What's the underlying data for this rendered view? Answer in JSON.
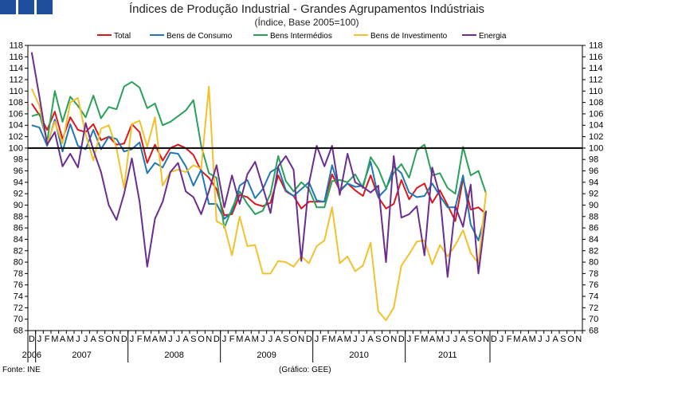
{
  "chart_data": {
    "type": "line",
    "title": "Índices de Produção Industrial - Grandes Agrupamentos Indústriais",
    "subtitle": "(Índice, Base 2005=100)",
    "source": "Fonte: INE",
    "credit": "(Gráfico: GEE)",
    "ylim": [
      68,
      118
    ],
    "ystep": 2,
    "reference_line": 100,
    "legend_position": "top",
    "month_labels": [
      "D",
      "J",
      "F",
      "M",
      "A",
      "M",
      "J",
      "J",
      "A",
      "S",
      "O",
      "N",
      "D",
      "J",
      "F",
      "M",
      "A",
      "M",
      "J",
      "J",
      "A",
      "S",
      "O",
      "N",
      "D",
      "J",
      "F",
      "M",
      "A",
      "M",
      "J",
      "J",
      "A",
      "S",
      "O",
      "N",
      "D",
      "J",
      "F",
      "M",
      "A",
      "M",
      "J",
      "J",
      "A",
      "S",
      "O",
      "N",
      "D",
      "J",
      "F",
      "M",
      "A",
      "M",
      "J",
      "J",
      "A",
      "S",
      "O",
      "N",
      "D",
      "J",
      "F",
      "M",
      "A",
      "M",
      "J",
      "J",
      "A",
      "S",
      "O",
      "N"
    ],
    "year_labels": [
      {
        "label": "2006",
        "start": 0,
        "end": 0
      },
      {
        "label": "2007",
        "start": 1,
        "end": 12
      },
      {
        "label": "2008",
        "start": 13,
        "end": 24
      },
      {
        "label": "2009",
        "start": 25,
        "end": 36
      },
      {
        "label": "2010",
        "start": 37,
        "end": 48
      },
      {
        "label": "2011",
        "start": 49,
        "end": 59
      }
    ],
    "series": [
      {
        "name": "Total",
        "color": "#d7191c",
        "values": [
          107.8,
          105.8,
          103.2,
          106.4,
          101.6,
          105.4,
          103.2,
          102.8,
          104.2,
          101.4,
          102.0,
          100.6,
          100.8,
          104.2,
          102.8,
          97.4,
          100.6,
          97.8,
          100.0,
          100.6,
          100.0,
          98.8,
          96.0,
          94.8,
          92.8,
          88.2,
          88.4,
          91.8,
          91.4,
          90.2,
          89.8,
          90.4,
          95.2,
          92.4,
          91.6,
          89.4,
          90.6,
          90.6,
          90.6,
          95.4,
          92.6,
          93.8,
          92.6,
          91.6,
          95.2,
          91.4,
          89.4,
          90.2,
          94.4,
          91.0,
          93.0,
          93.8,
          90.4,
          92.6,
          90.0,
          87.2,
          94.6,
          89.2,
          89.6,
          88.4
        ]
      },
      {
        "name": "Bens de Consumo",
        "color": "#1f77b4",
        "values": [
          104.0,
          103.6,
          100.4,
          105.0,
          99.4,
          104.2,
          100.4,
          99.8,
          103.2,
          99.8,
          102.0,
          101.6,
          99.4,
          99.8,
          101.0,
          95.6,
          97.4,
          96.6,
          99.2,
          99.0,
          96.8,
          93.4,
          96.2,
          90.2,
          90.2,
          87.6,
          88.8,
          93.4,
          94.4,
          91.2,
          92.8,
          95.8,
          96.6,
          92.6,
          91.6,
          92.8,
          94.0,
          90.8,
          90.6,
          97.0,
          92.4,
          93.8,
          93.2,
          93.4,
          97.6,
          91.4,
          92.8,
          96.8,
          95.6,
          92.2,
          91.4,
          91.6,
          93.8,
          91.6,
          89.6,
          89.6,
          95.2,
          86.6,
          83.8,
          89.0
        ]
      },
      {
        "name": "Bens Intermédios",
        "color": "#2aa05a",
        "values": [
          105.6,
          106.0,
          101.2,
          110.0,
          104.6,
          109.0,
          107.4,
          105.4,
          109.2,
          105.2,
          107.2,
          106.8,
          110.8,
          111.6,
          110.6,
          107.0,
          107.8,
          104.0,
          104.6,
          105.6,
          106.6,
          108.4,
          100.4,
          95.6,
          94.8,
          86.0,
          89.4,
          92.4,
          90.2,
          88.4,
          89.0,
          92.0,
          98.6,
          94.2,
          92.4,
          94.0,
          92.8,
          89.6,
          89.6,
          94.2,
          94.4,
          94.0,
          95.4,
          93.0,
          98.4,
          96.4,
          93.0,
          95.6,
          97.2,
          94.8,
          99.6,
          100.6,
          95.2,
          95.6,
          93.0,
          92.0,
          100.2,
          95.2,
          96.0,
          92.0
        ]
      },
      {
        "name": "Bens de Investimento",
        "color": "#f2c12e",
        "values": [
          110.4,
          107.4,
          100.8,
          104.6,
          100.8,
          108.0,
          108.8,
          102.4,
          97.8,
          103.4,
          104.0,
          100.0,
          93.0,
          104.2,
          104.8,
          100.2,
          105.4,
          93.4,
          95.8,
          96.2,
          95.8,
          97.0,
          96.4,
          110.8,
          87.2,
          86.4,
          81.2,
          88.0,
          82.8,
          83.0,
          78.0,
          78.0,
          80.2,
          80.0,
          79.2,
          81.0,
          79.8,
          82.8,
          83.8,
          89.6,
          79.8,
          81.0,
          78.4,
          79.4,
          83.4,
          71.4,
          69.8,
          72.0,
          79.4,
          81.4,
          83.6,
          83.8,
          79.6,
          83.0,
          81.0,
          83.0,
          85.6,
          81.6,
          79.8,
          92.4
        ]
      },
      {
        "name": "Energia",
        "color": "#6b2d8f",
        "values": [
          116.8,
          109.0,
          100.6,
          102.8,
          96.8,
          99.0,
          96.6,
          104.4,
          99.6,
          95.8,
          90.0,
          87.4,
          92.0,
          98.2,
          90.6,
          79.2,
          87.6,
          90.6,
          95.8,
          97.4,
          92.4,
          91.4,
          88.4,
          92.4,
          97.0,
          89.6,
          95.2,
          90.2,
          95.4,
          97.6,
          93.2,
          88.6,
          96.8,
          98.6,
          96.2,
          80.2,
          93.8,
          100.4,
          96.8,
          100.4,
          91.8,
          99.0,
          94.0,
          93.2,
          92.2,
          93.4,
          80.0,
          98.6,
          87.8,
          88.4,
          89.8,
          81.2,
          96.6,
          91.6,
          77.4,
          89.8,
          86.2,
          93.6,
          78.0,
          89.0
        ]
      }
    ]
  }
}
